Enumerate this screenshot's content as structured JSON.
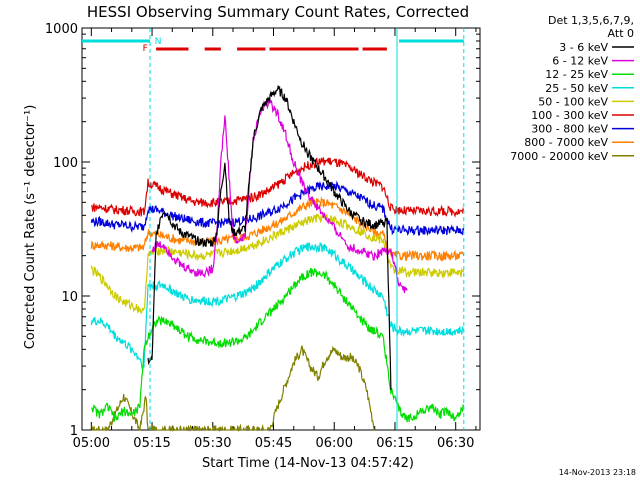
{
  "chart_data": {
    "type": "line",
    "title": "HESSI Observing Summary Count Rates, Corrected",
    "xlabel": "Start Time (14-Nov-13 04:57:42)",
    "ylabel": "Corrected Count Rate (s⁻¹ detector⁻¹)",
    "ylog": true,
    "xlim": [
      "04:57:42",
      "06:36:00"
    ],
    "ylim": [
      1,
      1000
    ],
    "x_tick_labels": [
      "05:00",
      "05:15",
      "05:30",
      "05:45",
      "06:00",
      "06:15",
      "06:30"
    ],
    "x_ticks_min": [
      0,
      15,
      30,
      45,
      60,
      75,
      90
    ],
    "y_tick_labels": [
      "1",
      "10",
      "100",
      "1000"
    ],
    "y_ticks": [
      1,
      10,
      100,
      1000
    ],
    "legend_header": [
      "Det 1,3,5,6,7,9,",
      "Att 0"
    ],
    "legend_entries": [
      {
        "label": "3 - 6 keV",
        "color": "#000000"
      },
      {
        "label": "6 - 12 keV",
        "color": "#dd00dd"
      },
      {
        "label": "12 - 25 keV",
        "color": "#00dd00"
      },
      {
        "label": "25 - 50 keV",
        "color": "#00dddd"
      },
      {
        "label": "50 - 100 keV",
        "color": "#cccc00"
      },
      {
        "label": "100 - 300 keV",
        "color": "#dd0000"
      },
      {
        "label": "300 - 800 keV",
        "color": "#0000dd"
      },
      {
        "label": "800 - 7000 keV",
        "color": "#ff8000"
      },
      {
        "label": "7000 - 20000 keV",
        "color": "#808000"
      }
    ],
    "flag_labels": {
      "f": "F",
      "n": "N"
    },
    "timestamp": "14-Nov-2013 23:18",
    "grid": false,
    "legend_position": "top-right",
    "series": [
      {
        "name": "3 - 6 keV",
        "color": "#000000",
        "x": [
          14,
          14.5,
          15,
          16,
          17,
          18,
          19,
          20,
          22,
          24,
          26,
          28,
          30,
          31,
          32,
          33,
          34,
          35,
          36,
          38,
          40,
          42,
          44,
          46,
          48,
          50,
          52,
          54,
          56,
          58,
          60,
          62,
          64,
          66,
          68,
          70,
          72,
          73,
          74
        ],
        "y": [
          3.3,
          3.3,
          3.3,
          28,
          38,
          44,
          40,
          35,
          30,
          28,
          26,
          25,
          25,
          30,
          60,
          100,
          38,
          30,
          30,
          32,
          150,
          250,
          300,
          350,
          300,
          200,
          140,
          110,
          90,
          75,
          60,
          50,
          42,
          38,
          35,
          34,
          35,
          36,
          2
        ]
      },
      {
        "name": "6 - 12 keV",
        "color": "#dd00dd",
        "x": [
          15,
          16,
          18,
          20,
          22,
          24,
          26,
          28,
          30,
          31,
          32,
          33,
          34,
          35,
          36,
          38,
          40,
          42,
          44,
          46,
          48,
          50,
          52,
          54,
          56,
          58,
          60,
          62,
          64,
          66,
          68,
          70,
          72,
          74,
          76,
          78
        ],
        "y": [
          22,
          24,
          24,
          20,
          17,
          16,
          15,
          15,
          16,
          30,
          100,
          220,
          80,
          28,
          25,
          28,
          150,
          250,
          280,
          230,
          160,
          100,
          70,
          55,
          45,
          38,
          32,
          27,
          23,
          22,
          21,
          20,
          22,
          22,
          12,
          11
        ]
      },
      {
        "name": "12 - 25 keV",
        "color": "#00dd00",
        "x": [
          0,
          2,
          4,
          6,
          8,
          10,
          12,
          13,
          14,
          16,
          18,
          20,
          22,
          24,
          26,
          28,
          30,
          32,
          34,
          36,
          38,
          40,
          42,
          44,
          46,
          48,
          50,
          52,
          54,
          56,
          58,
          60,
          62,
          64,
          66,
          68,
          70,
          72,
          74,
          76,
          78,
          80,
          82,
          84,
          86,
          88,
          90,
          92
        ],
        "y": [
          1.5,
          1.3,
          1.5,
          1.2,
          1.4,
          1.3,
          1.5,
          4,
          5,
          6.5,
          6.5,
          6.2,
          5.5,
          5,
          4.8,
          4.6,
          4.5,
          4.5,
          4.5,
          4.6,
          4.8,
          5.5,
          6.5,
          7.5,
          8.5,
          10,
          12,
          14,
          15,
          15,
          14,
          12,
          10,
          8.5,
          7,
          6,
          5.5,
          5,
          2,
          1.4,
          1.2,
          1.3,
          1.4,
          1.5,
          1.3,
          1.4,
          1.2,
          1.5
        ]
      },
      {
        "name": "25 - 50 keV",
        "color": "#00dddd",
        "x": [
          0,
          2,
          4,
          6,
          8,
          10,
          12,
          13,
          14,
          16,
          18,
          20,
          22,
          24,
          26,
          28,
          30,
          32,
          34,
          36,
          38,
          40,
          42,
          44,
          46,
          48,
          50,
          52,
          54,
          56,
          58,
          60,
          62,
          64,
          66,
          68,
          70,
          72,
          74,
          76,
          78,
          80,
          82,
          84,
          86,
          88,
          90,
          92
        ],
        "y": [
          6.5,
          6.5,
          6,
          5,
          4.5,
          4,
          3.4,
          2.9,
          12,
          12,
          12,
          11,
          10,
          9.5,
          9.3,
          9.2,
          9.2,
          9.3,
          9.5,
          10,
          10.5,
          11.5,
          13,
          15,
          17,
          19,
          21,
          22.5,
          23.5,
          23.5,
          22.5,
          20.5,
          18,
          16,
          14,
          12.5,
          11,
          10,
          6,
          5.5,
          5.5,
          5.5,
          5.5,
          5.5,
          5.5,
          5.5,
          5.5,
          5.5
        ]
      },
      {
        "name": "50 - 100 keV",
        "color": "#cccc00",
        "x": [
          0,
          2,
          4,
          6,
          8,
          10,
          12,
          13,
          14,
          16,
          18,
          20,
          22,
          24,
          26,
          28,
          30,
          32,
          34,
          36,
          38,
          40,
          42,
          44,
          46,
          48,
          50,
          52,
          54,
          56,
          58,
          60,
          62,
          64,
          66,
          68,
          70,
          72,
          74,
          76,
          78,
          80,
          82,
          84,
          86,
          88,
          90,
          92
        ],
        "y": [
          16,
          14,
          12,
          10,
          9,
          8.5,
          8,
          7.5,
          20,
          22,
          22,
          21.5,
          21,
          20.5,
          20,
          20,
          20.5,
          21,
          21.5,
          22,
          23,
          24,
          25.5,
          27,
          29,
          31,
          33,
          35,
          37,
          38,
          38,
          37,
          35,
          33,
          31,
          29,
          27,
          26,
          16,
          15.5,
          15,
          15,
          15,
          15,
          15,
          15,
          15,
          15
        ]
      },
      {
        "name": "100 - 300 keV",
        "color": "#dd0000",
        "x": [
          0,
          2,
          4,
          6,
          8,
          10,
          12,
          13,
          14,
          16,
          18,
          20,
          22,
          24,
          26,
          28,
          30,
          32,
          34,
          36,
          38,
          40,
          42,
          44,
          46,
          48,
          50,
          52,
          54,
          56,
          58,
          60,
          62,
          64,
          66,
          68,
          70,
          72,
          74,
          76,
          78,
          80,
          82,
          84,
          86,
          88,
          90,
          92
        ],
        "y": [
          46,
          46,
          45,
          44,
          44,
          43,
          43,
          42,
          70,
          66,
          62,
          58,
          55,
          52,
          50,
          50,
          50,
          50,
          51,
          52,
          53,
          55,
          58,
          62,
          68,
          75,
          83,
          90,
          96,
          100,
          102,
          100,
          96,
          90,
          83,
          76,
          70,
          66,
          45,
          44,
          43,
          43,
          43,
          43,
          43,
          43,
          43,
          43
        ]
      },
      {
        "name": "300 - 800 keV",
        "color": "#0000dd",
        "x": [
          0,
          2,
          4,
          6,
          8,
          10,
          12,
          13,
          14,
          16,
          18,
          20,
          22,
          24,
          26,
          28,
          30,
          32,
          34,
          36,
          38,
          40,
          42,
          44,
          46,
          48,
          50,
          52,
          54,
          56,
          58,
          60,
          62,
          64,
          66,
          68,
          70,
          72,
          74,
          76,
          78,
          80,
          82,
          84,
          86,
          88,
          90,
          92
        ],
        "y": [
          36,
          36,
          35,
          34,
          34,
          33,
          33,
          33,
          45,
          44,
          42,
          40,
          38,
          37,
          36,
          35,
          35,
          35,
          35.5,
          36,
          37,
          38,
          40,
          42,
          45,
          49,
          53,
          58,
          62,
          65,
          66,
          66,
          63,
          59,
          55,
          51,
          47,
          45,
          32,
          31,
          31,
          31,
          31,
          31,
          31,
          31,
          31,
          31
        ]
      },
      {
        "name": "800 - 7000 keV",
        "color": "#ff8000",
        "x": [
          0,
          2,
          4,
          6,
          8,
          10,
          12,
          13,
          14,
          16,
          18,
          20,
          22,
          24,
          26,
          28,
          30,
          32,
          34,
          36,
          38,
          40,
          42,
          44,
          46,
          48,
          50,
          52,
          54,
          56,
          58,
          60,
          62,
          64,
          66,
          68,
          70,
          72,
          74,
          76,
          78,
          80,
          82,
          84,
          86,
          88,
          90,
          92
        ],
        "y": [
          24,
          24,
          24,
          23.5,
          23,
          23,
          23,
          23,
          30,
          29,
          28,
          27,
          26,
          26,
          25.5,
          25.5,
          25.5,
          26,
          26.5,
          27,
          28,
          29,
          31,
          33,
          35,
          38,
          42,
          46,
          49,
          50,
          49.5,
          47,
          44,
          40,
          36,
          33,
          30,
          29,
          20,
          20,
          20,
          20,
          20,
          20,
          20,
          20,
          20,
          20
        ]
      },
      {
        "name": "7000 - 20000 keV",
        "color": "#808000",
        "x": [
          0,
          4,
          8,
          12,
          13.5,
          14,
          30,
          44,
          46,
          48,
          50,
          52,
          54,
          56,
          58,
          60,
          62,
          64,
          66,
          68,
          70
        ],
        "y": [
          1,
          1,
          1.8,
          1,
          1.8,
          1,
          1,
          1,
          1.5,
          2.2,
          3.2,
          4,
          3,
          2.5,
          3.5,
          4,
          3.5,
          3.5,
          3,
          2,
          1
        ]
      }
    ]
  }
}
